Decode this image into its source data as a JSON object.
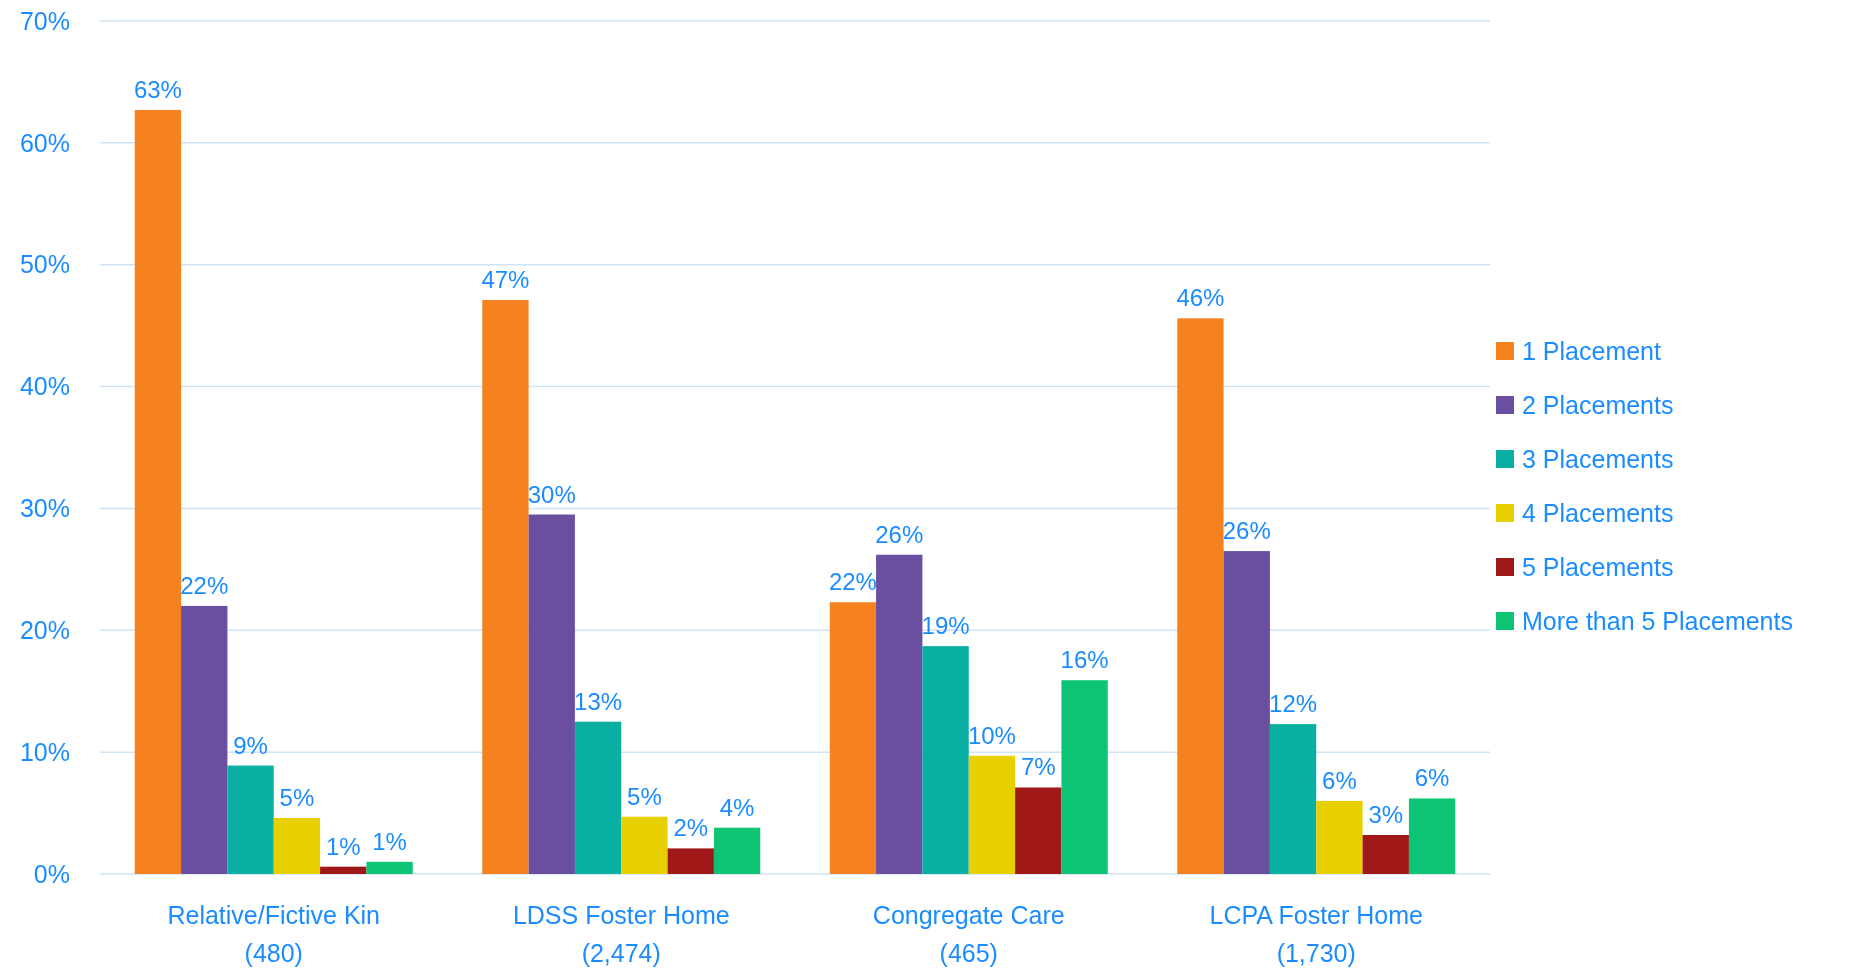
{
  "chart_data": {
    "type": "bar",
    "categories": [
      "Relative/Fictive Kin\n(480)",
      "LDSS Foster Home\n(2,474)",
      "Congregate Care\n(465)",
      "LCPA Foster Home\n(1,730)"
    ],
    "series": [
      {
        "name": "1 Placement",
        "color": "#f5821f",
        "values": [
          62.7,
          47.1,
          22.3,
          45.6
        ],
        "value_labels": [
          "63%",
          "47%",
          "22%",
          "46%"
        ]
      },
      {
        "name": "2 Placements",
        "color": "#6a4fa0",
        "values": [
          22.0,
          29.5,
          26.2,
          26.5
        ],
        "value_labels": [
          "22%",
          "30%",
          "26%",
          "26%"
        ]
      },
      {
        "name": "3 Placements",
        "color": "#0aafa3",
        "values": [
          8.9,
          12.5,
          18.7,
          12.3
        ],
        "value_labels": [
          "9%",
          "13%",
          "19%",
          "12%"
        ]
      },
      {
        "name": "4 Placements",
        "color": "#e8cf00",
        "values": [
          4.6,
          4.7,
          9.7,
          6.0
        ],
        "value_labels": [
          "5%",
          "5%",
          "10%",
          "6%"
        ]
      },
      {
        "name": "5 Placements",
        "color": "#a01818",
        "values": [
          0.6,
          2.1,
          7.1,
          3.2
        ],
        "value_labels": [
          "1%",
          "2%",
          "7%",
          "3%"
        ]
      },
      {
        "name": "More than 5 Placements",
        "color": "#0cc473",
        "values": [
          1.0,
          3.8,
          15.9,
          6.2
        ],
        "value_labels": [
          "1%",
          "4%",
          "16%",
          "6%"
        ]
      }
    ],
    "ylim": [
      0,
      70
    ],
    "yticks": [
      {
        "value": 0,
        "label": "0%"
      },
      {
        "value": 10,
        "label": "10%"
      },
      {
        "value": 20,
        "label": "20%"
      },
      {
        "value": 30,
        "label": "30%"
      },
      {
        "value": 40,
        "label": "40%"
      },
      {
        "value": 50,
        "label": "50%"
      },
      {
        "value": 60,
        "label": "60%"
      },
      {
        "value": 70,
        "label": "70%"
      }
    ],
    "grid": "y",
    "legend": "right"
  }
}
